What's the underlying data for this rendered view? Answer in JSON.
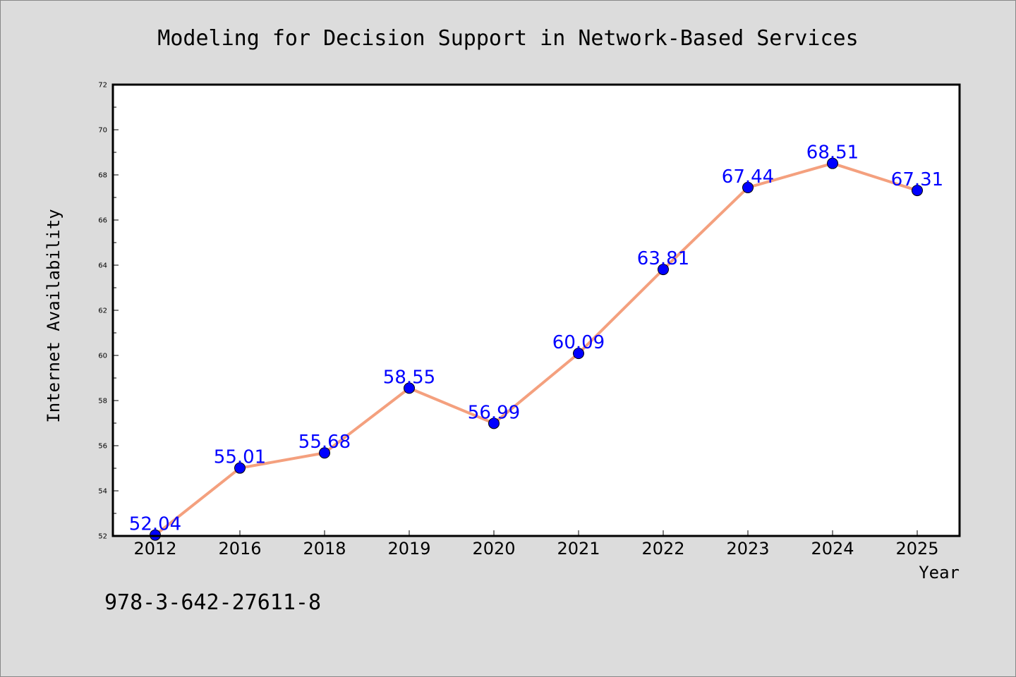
{
  "chart_data": {
    "type": "line",
    "title": "Modeling for Decision Support in Network-Based Services",
    "xlabel": "Year",
    "ylabel": "Internet Availability",
    "categories": [
      "2012",
      "2016",
      "2018",
      "2019",
      "2020",
      "2021",
      "2022",
      "2023",
      "2024",
      "2025"
    ],
    "series": [
      {
        "values": [
          52.04,
          55.01,
          55.68,
          58.55,
          56.99,
          60.09,
          63.81,
          67.44,
          68.51,
          67.31
        ],
        "labels": [
          "52.04",
          "55.01",
          "55.68",
          "58.55",
          "56.99",
          "60.09",
          "63.81",
          "67.44",
          "68.51",
          "67.31"
        ],
        "line_color": "#f4a07e",
        "marker_color": "#0000ff"
      }
    ],
    "ylim": [
      52,
      72
    ],
    "yticks": [
      "52",
      "54",
      "56",
      "58",
      "60",
      "62",
      "64",
      "66",
      "68",
      "70",
      "72"
    ],
    "grid": false,
    "legend": "none",
    "label_color": "#0000ff"
  },
  "footnote": "978-3-642-27611-8",
  "colors": {
    "page_background": "#dcdcdc",
    "plot_background": "#ffffff"
  }
}
